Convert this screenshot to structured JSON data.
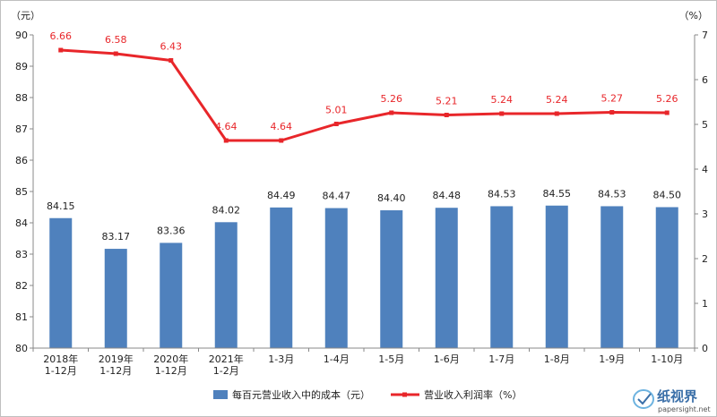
{
  "chart_data": {
    "type": "bar",
    "categories": [
      [
        "2018年",
        "1-12月"
      ],
      [
        "2019年",
        "1-12月"
      ],
      [
        "2020年",
        "1-12月"
      ],
      [
        "2021年",
        "1-2月"
      ],
      [
        "1-3月"
      ],
      [
        "1-4月"
      ],
      [
        "1-5月"
      ],
      [
        "1-6月"
      ],
      [
        "1-7月"
      ],
      [
        "1-8月"
      ],
      [
        "1-9月"
      ],
      [
        "1-10月"
      ]
    ],
    "series": [
      {
        "name": "每百元营业收入中的成本（元）",
        "type": "bar",
        "axis": "left",
        "color": "#4f81bd",
        "values": [
          84.15,
          83.17,
          83.36,
          84.02,
          84.49,
          84.47,
          84.4,
          84.48,
          84.53,
          84.55,
          84.53,
          84.5
        ],
        "labels": [
          "84.15",
          "83.17",
          "83.36",
          "84.02",
          "84.49",
          "84.47",
          "84.40",
          "84.48",
          "84.53",
          "84.55",
          "84.53",
          "84.50"
        ]
      },
      {
        "name": "营业收入利润率（%）",
        "type": "line",
        "axis": "right",
        "color": "#e8262a",
        "values": [
          6.66,
          6.58,
          6.43,
          4.64,
          4.64,
          5.01,
          5.26,
          5.21,
          5.24,
          5.24,
          5.27,
          5.26
        ],
        "labels": [
          "6.66",
          "6.58",
          "6.43",
          "4.64",
          "4.64",
          "5.01",
          "5.26",
          "5.21",
          "5.24",
          "5.24",
          "5.27",
          "5.26"
        ]
      }
    ],
    "y_left": {
      "unit": "（元）",
      "min": 80,
      "max": 90,
      "ticks": [
        80,
        81,
        82,
        83,
        84,
        85,
        86,
        87,
        88,
        89,
        90
      ]
    },
    "y_right": {
      "unit": "（%）",
      "min": 0,
      "max": 7,
      "ticks": [
        0,
        1,
        2,
        3,
        4,
        5,
        6,
        7
      ]
    },
    "grid": false,
    "legend_position": "bottom"
  },
  "watermark": {
    "text": "纸视界",
    "sub": "papersight.net"
  }
}
